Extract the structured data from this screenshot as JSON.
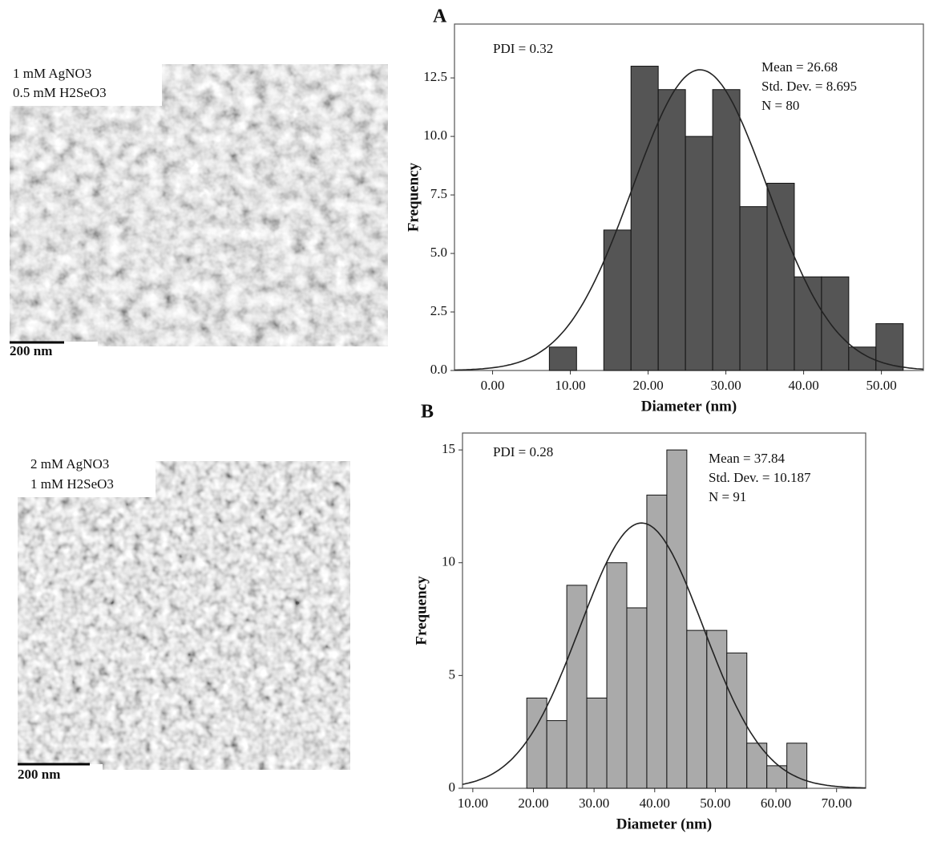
{
  "panels": [
    {
      "lines": [
        "1 mM AgNO3",
        "0.5 mM H2SeO3"
      ],
      "scale_bar": "200 nm"
    },
    {
      "lines": [
        "2 mM AgNO3",
        "1 mM H2SeO3"
      ],
      "scale_bar": "200 nm"
    }
  ],
  "chart_data": [
    {
      "type": "histogram",
      "panel_label": "A",
      "note": "PDI = 0.32",
      "stats_text": [
        "Mean = 26.68",
        "Std. Dev. = 8.695",
        "N = 80"
      ],
      "normal_curve": {
        "mean": 26.68,
        "sd": 8.695,
        "n": 80
      },
      "xlabel": "Diameter (nm)",
      "ylabel": "Frequency",
      "color": "#555555",
      "bins": [
        7.3,
        10.8,
        14.3,
        17.8,
        21.3,
        24.8,
        28.3,
        31.8,
        35.3,
        38.8,
        42.3,
        45.8,
        49.3,
        52.8
      ],
      "values": [
        1,
        0,
        6,
        13,
        12,
        10,
        12,
        7,
        8,
        4,
        4,
        1,
        2
      ],
      "xlim": [
        -4.9,
        55.4
      ],
      "xticks": [
        {
          "value": 0,
          "label": "0.00"
        },
        {
          "value": 10,
          "label": "10.00"
        },
        {
          "value": 20,
          "label": "20.00"
        },
        {
          "value": 30,
          "label": "30.00"
        },
        {
          "value": 40,
          "label": "40.00"
        },
        {
          "value": 50,
          "label": "50.00"
        }
      ],
      "ylim": [
        0,
        14.8
      ],
      "yticks": [
        {
          "value": 0,
          "label": "0.0"
        },
        {
          "value": 2.5,
          "label": "2.5"
        },
        {
          "value": 5,
          "label": "5.0"
        },
        {
          "value": 7.5,
          "label": "7.5"
        },
        {
          "value": 10,
          "label": "10.0"
        },
        {
          "value": 12.5,
          "label": "12.5"
        }
      ]
    },
    {
      "type": "histogram",
      "panel_label": "B",
      "note": "PDI = 0.28",
      "stats_text": [
        "Mean = 37.84",
        "Std. Dev. = 10.187",
        "N = 91"
      ],
      "normal_curve": {
        "mean": 37.84,
        "sd": 10.187,
        "n": 91
      },
      "xlabel": "Diameter (nm)",
      "ylabel": "Frequency",
      "color": "#aaaaaa",
      "bins": [
        18.9,
        22.2,
        25.5,
        28.8,
        32.1,
        35.4,
        38.7,
        42.0,
        45.3,
        48.6,
        51.9,
        55.2,
        58.5,
        61.8,
        65.1
      ],
      "values": [
        4,
        3,
        9,
        4,
        10,
        8,
        13,
        15,
        7,
        7,
        6,
        2,
        1,
        2
      ],
      "xlim": [
        8.3,
        74.8
      ],
      "xticks": [
        {
          "value": 10,
          "label": "10.00"
        },
        {
          "value": 20,
          "label": "20.00"
        },
        {
          "value": 30,
          "label": "30.00"
        },
        {
          "value": 40,
          "label": "40.00"
        },
        {
          "value": 50,
          "label": "50.00"
        },
        {
          "value": 60,
          "label": "60.00"
        },
        {
          "value": 70,
          "label": "70.00"
        }
      ],
      "ylim": [
        0,
        15.75
      ],
      "yticks": [
        0,
        5,
        10,
        15
      ]
    }
  ]
}
